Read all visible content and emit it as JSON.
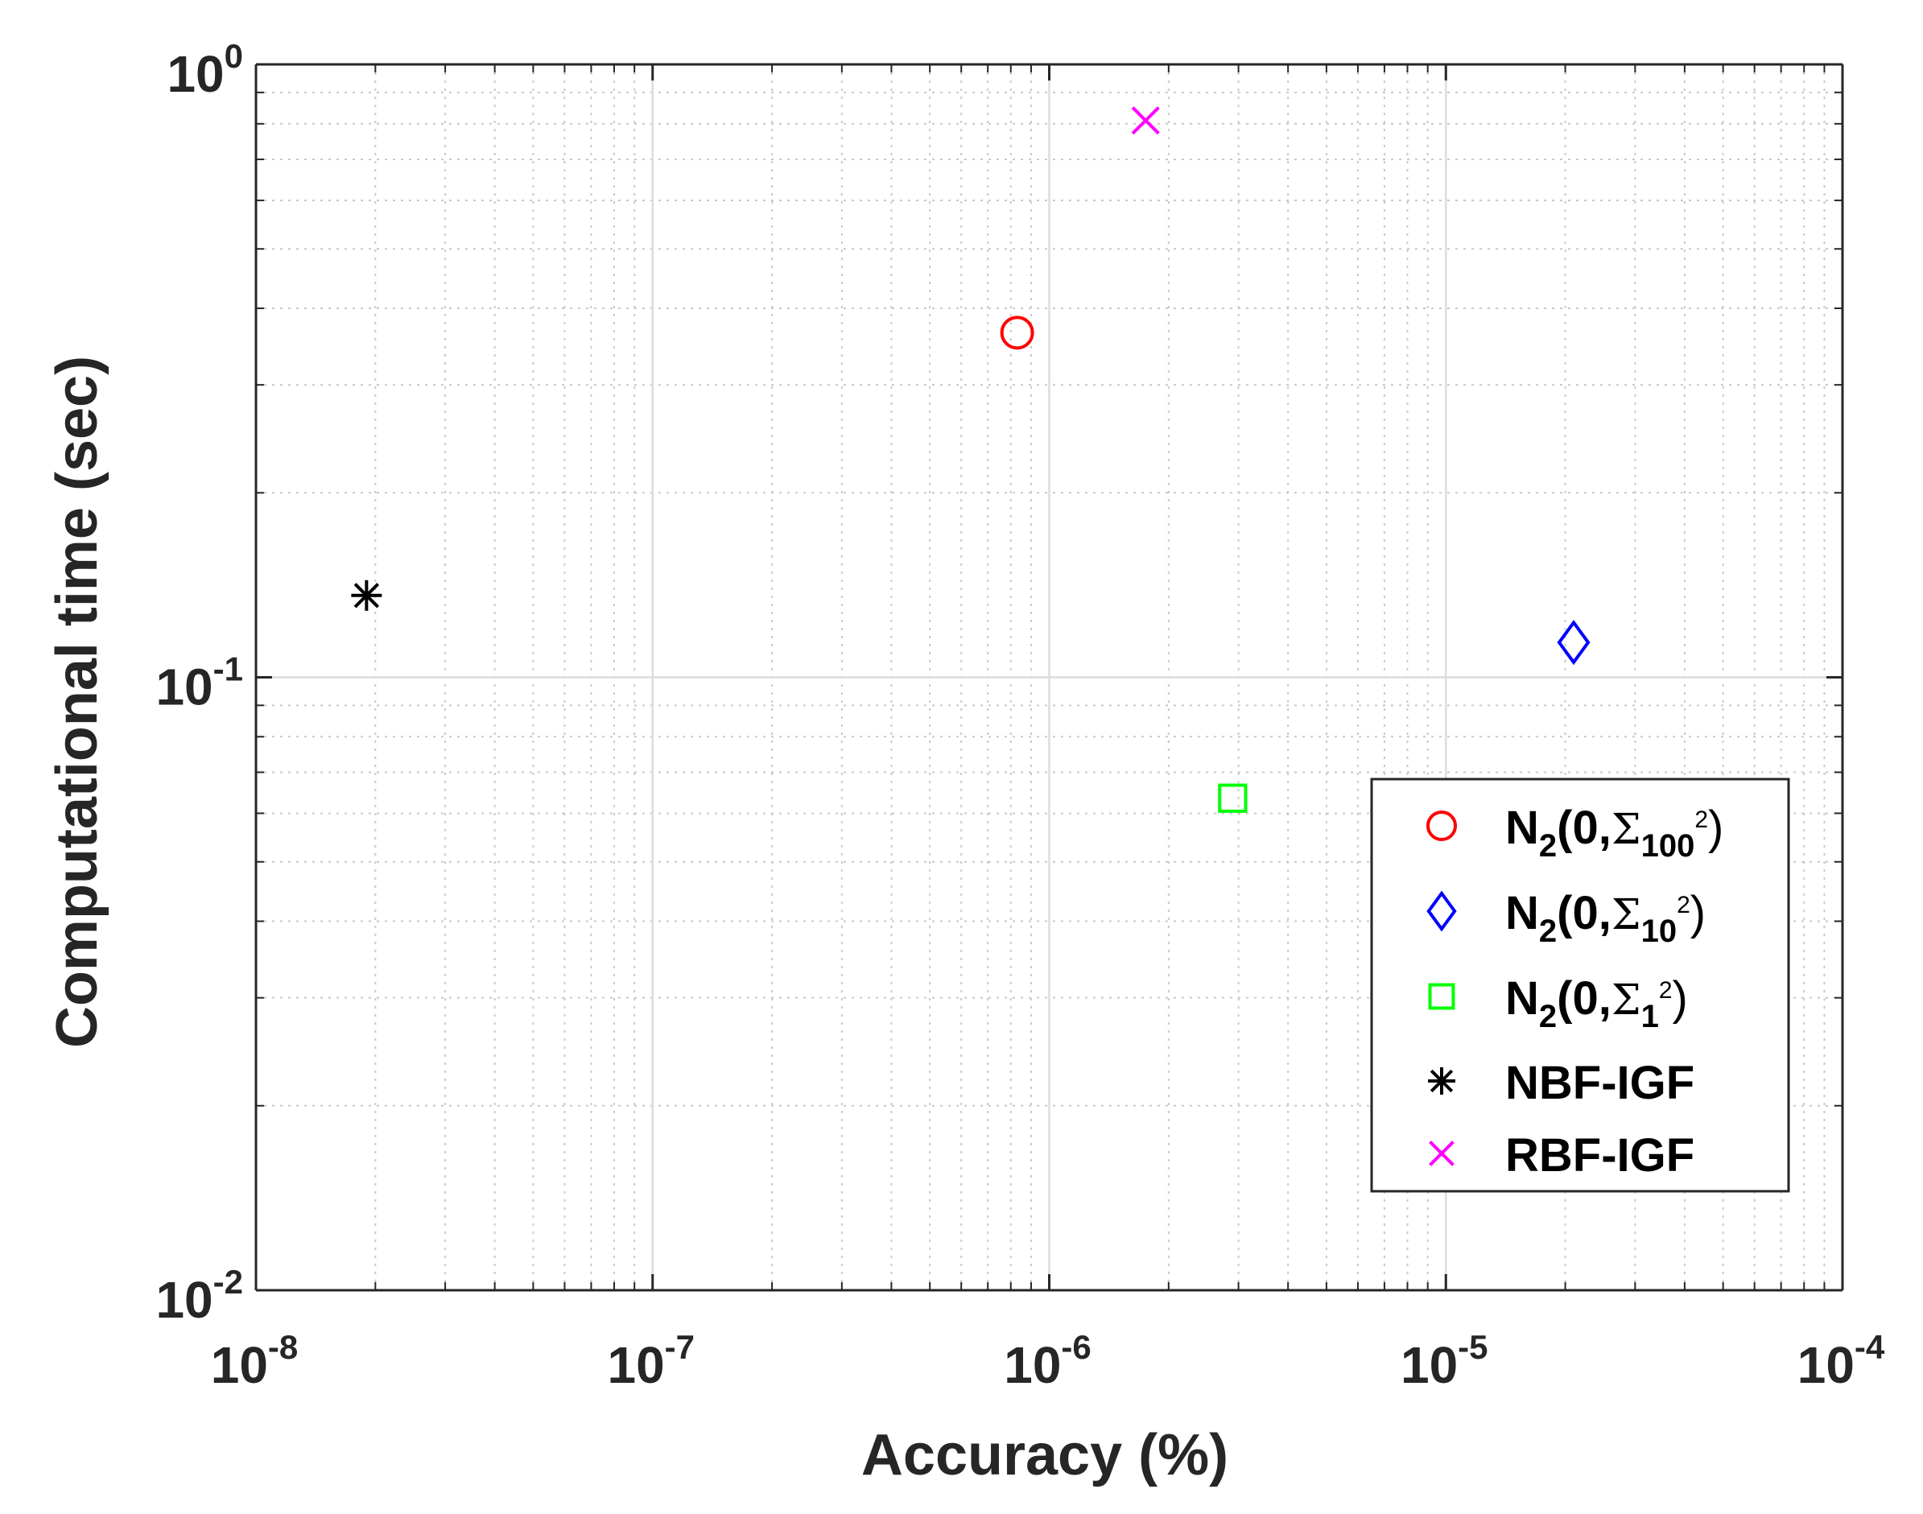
{
  "chart_data": {
    "type": "scatter",
    "xlabel": "Accuracy (%)",
    "ylabel": "Computational time (sec)",
    "xscale": "log",
    "yscale": "log",
    "xlim": [
      1e-08,
      0.0001
    ],
    "ylim": [
      0.01,
      1
    ],
    "x_ticks": [
      {
        "base": "10",
        "exp": "-8"
      },
      {
        "base": "10",
        "exp": "-7"
      },
      {
        "base": "10",
        "exp": "-6"
      },
      {
        "base": "10",
        "exp": "-5"
      },
      {
        "base": "10",
        "exp": "-4"
      }
    ],
    "y_ticks": [
      {
        "base": "10",
        "exp": "-2"
      },
      {
        "base": "10",
        "exp": "-1"
      },
      {
        "base": "10",
        "exp": "0"
      }
    ],
    "grid": true,
    "legend_position": "bottom-right",
    "series": [
      {
        "label": {
          "main": "N",
          "sub": "2",
          "args": "(0,",
          "sigma": "Σ",
          "sigma_sub": "100",
          "sigma_sup": "2",
          "close": ")"
        },
        "marker": "circle",
        "color": "#ff0000",
        "x": 8.3e-07,
        "y": 0.365
      },
      {
        "label": {
          "main": "N",
          "sub": "2",
          "args": "(0,",
          "sigma": "Σ",
          "sigma_sub": "10",
          "sigma_sup": "2",
          "close": ")"
        },
        "marker": "diamond",
        "color": "#0000ff",
        "x": 2.1e-05,
        "y": 0.114
      },
      {
        "label": {
          "main": "N",
          "sub": "2",
          "args": "(0,",
          "sigma": "Σ",
          "sigma_sub": "1",
          "sigma_sup": "2",
          "close": ")"
        },
        "marker": "square",
        "color": "#00ff00",
        "x": 2.9e-06,
        "y": 0.0635
      },
      {
        "label": {
          "main": "NBF-IGF"
        },
        "marker": "asterisk",
        "color": "#000000",
        "x": 1.9e-08,
        "y": 0.136
      },
      {
        "label": {
          "main": "RBF-IGF"
        },
        "marker": "x",
        "color": "#ff00ff",
        "x": 1.75e-06,
        "y": 0.81
      }
    ]
  }
}
